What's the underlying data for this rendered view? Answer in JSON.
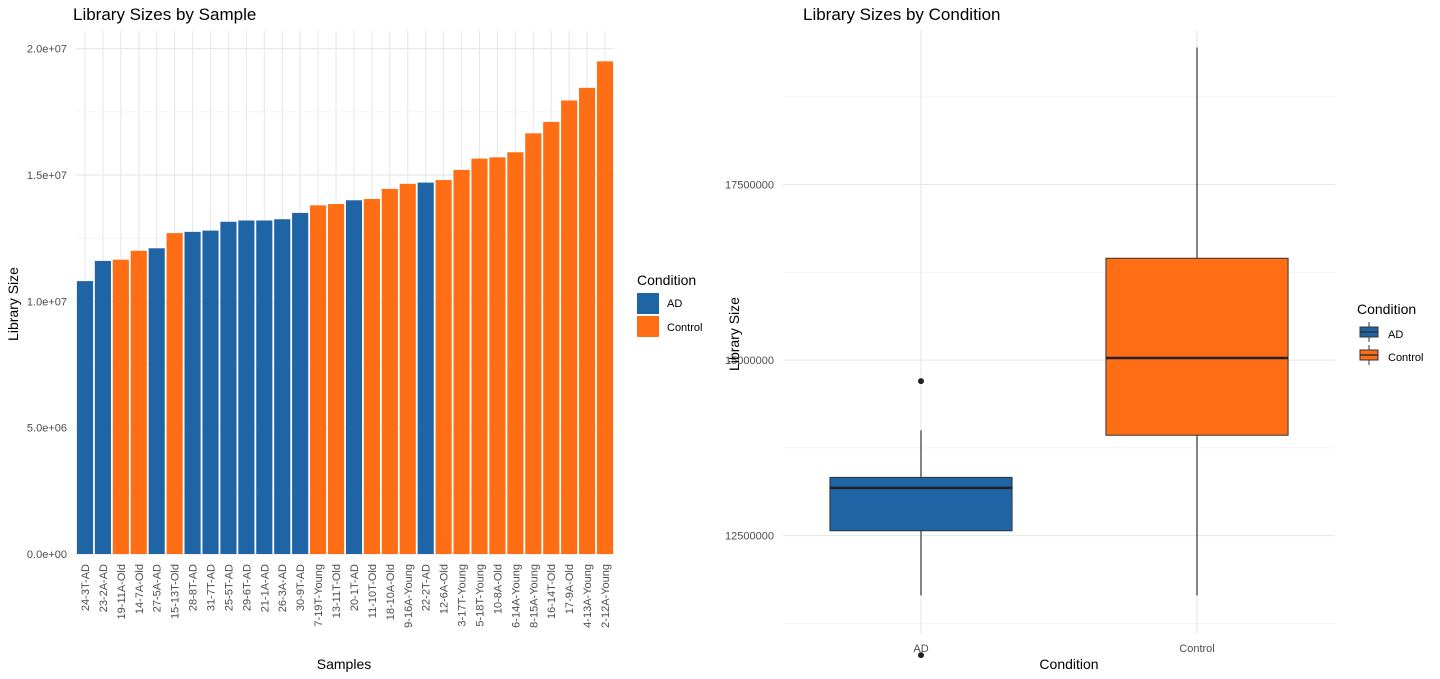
{
  "chart_data": [
    {
      "type": "bar",
      "title": "Library Sizes by Sample",
      "xlabel": "Samples",
      "ylabel": "Library Size",
      "ylim": [
        0,
        20700000
      ],
      "yticks": [
        0,
        5000000,
        10000000,
        15000000,
        20000000
      ],
      "ytick_labels": [
        "0.0e+00",
        "5.0e+06",
        "1.0e+07",
        "1.5e+07",
        "2.0e+07"
      ],
      "grid": true,
      "legend": {
        "title": "Condition",
        "position": "right",
        "entries": [
          "AD",
          "Control"
        ]
      },
      "colors": {
        "AD": "#1f64a5",
        "Control": "#ff6e14"
      },
      "categories": [
        "24-3T-AD",
        "23-2A-AD",
        "19-11A-Old",
        "14-7A-Old",
        "27-5A-AD",
        "15-13T-Old",
        "28-8T-AD",
        "31-7T-AD",
        "25-5T-AD",
        "29-6T-AD",
        "21-1A-AD",
        "26-3A-AD",
        "30-9T-AD",
        "7-19T-Young",
        "13-11T-Old",
        "20-1T-AD",
        "11-10T-Old",
        "18-10A-Old",
        "9-16A-Young",
        "22-2T-AD",
        "12-6A-Old",
        "3-17T-Young",
        "5-18T-Young",
        "10-8A-Old",
        "6-14A-Young",
        "8-15A-Young",
        "16-14T-Old",
        "17-9A-Old",
        "4-13A-Young",
        "2-12A-Young"
      ],
      "conditions": [
        "AD",
        "AD",
        "Control",
        "Control",
        "AD",
        "Control",
        "AD",
        "AD",
        "AD",
        "AD",
        "AD",
        "AD",
        "AD",
        "Control",
        "Control",
        "AD",
        "Control",
        "Control",
        "Control",
        "AD",
        "Control",
        "Control",
        "Control",
        "Control",
        "Control",
        "Control",
        "Control",
        "Control",
        "Control",
        "Control"
      ],
      "values": [
        10800000,
        11600000,
        11650000,
        12000000,
        12100000,
        12700000,
        12750000,
        12800000,
        13150000,
        13200000,
        13200000,
        13250000,
        13500000,
        13800000,
        13850000,
        14000000,
        14050000,
        14450000,
        14650000,
        14700000,
        14800000,
        15200000,
        15650000,
        15700000,
        15900000,
        16650000,
        17100000,
        17950000,
        18450000,
        19500000
      ]
    },
    {
      "type": "boxplot",
      "title": "Library Sizes by Condition",
      "xlabel": "Condition",
      "ylabel": "Library Size",
      "ylim": [
        11100000,
        19700000
      ],
      "yticks": [
        12500000,
        15000000,
        17500000
      ],
      "ytick_labels": [
        "12500000",
        "15000000",
        "17500000"
      ],
      "grid": true,
      "legend": {
        "title": "Condition",
        "position": "right",
        "entries": [
          "AD",
          "Control"
        ]
      },
      "colors": {
        "AD": "#1f64a5",
        "Control": "#ff6e14"
      },
      "categories": [
        "AD",
        "Control"
      ],
      "boxes": [
        {
          "name": "AD",
          "whisker_low": 11650000,
          "q1": 12570000,
          "median": 13180000,
          "q3": 13330000,
          "whisker_high": 14000000,
          "outliers": [
            10800000,
            14700000
          ]
        },
        {
          "name": "Control",
          "whisker_low": 11650000,
          "q1": 13930000,
          "median": 15030000,
          "q3": 16450000,
          "whisker_high": 19450000,
          "outliers": []
        }
      ]
    }
  ]
}
